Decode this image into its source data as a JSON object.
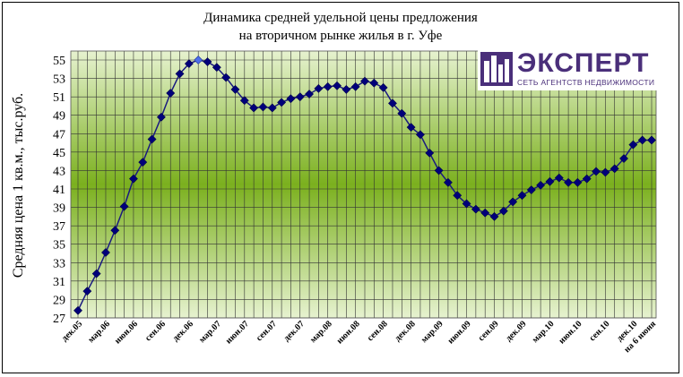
{
  "chart_data": {
    "type": "line",
    "title_line1": "Динамика средней удельной цены предложения",
    "title_line2": "на вторичном рынке жилья в г. Уфе",
    "xlabel": "",
    "ylabel": "Средняя цена 1 кв.м., тыс.руб.",
    "ylim": [
      27,
      55
    ],
    "yticks": [
      27,
      29,
      31,
      33,
      35,
      37,
      39,
      41,
      43,
      45,
      47,
      49,
      51,
      53,
      55
    ],
    "grid": true,
    "legend": "none",
    "x_tick_labels": [
      "дек.05",
      "мар.06",
      "июн.06",
      "сен.06",
      "дек.06",
      "мар.07",
      "июн.07",
      "сен.07",
      "дек.07",
      "мар.08",
      "июн.08",
      "сен.08",
      "дек.08",
      "мар.09",
      "июн.09",
      "сен.09",
      "дек.09",
      "мар.10",
      "июн.10",
      "сен.10",
      "дек.10",
      "на 6 июня"
    ],
    "series": [
      {
        "values": [
          27.8,
          29.9,
          31.8,
          34.1,
          36.5,
          39.1,
          42.1,
          43.9,
          46.4,
          48.8,
          51.4,
          53.5,
          54.6,
          55.0,
          54.8,
          54.2,
          53.1,
          51.8,
          50.6,
          49.8,
          49.9,
          49.8,
          50.4,
          50.8,
          51.0,
          51.3,
          51.9,
          52.1,
          52.2,
          51.8,
          52.1,
          52.7,
          52.5,
          52.0,
          50.3,
          49.2,
          47.7,
          46.9,
          44.9,
          43.0,
          41.7,
          40.3,
          39.4,
          38.8,
          38.4,
          38.0,
          38.6,
          39.6,
          40.3,
          40.9,
          41.4,
          41.8,
          42.2,
          41.7,
          41.7,
          42.1,
          42.9,
          42.8,
          43.2,
          44.3,
          45.8,
          46.3,
          46.3
        ]
      }
    ],
    "highlight_index": 13,
    "colors": {
      "line": "#1a1a80",
      "marker": "#00007a",
      "highlight": "#4d6fe8",
      "plot_light": "#e6f2cf",
      "plot_mid": "#a4cc52",
      "plot_dark": "#7bb01e"
    }
  },
  "logo": {
    "name": "ЭКСПЕРТ",
    "subtitle": "СЕТЬ АГЕНТСТВ НЕДВИЖИМОСТИ"
  }
}
